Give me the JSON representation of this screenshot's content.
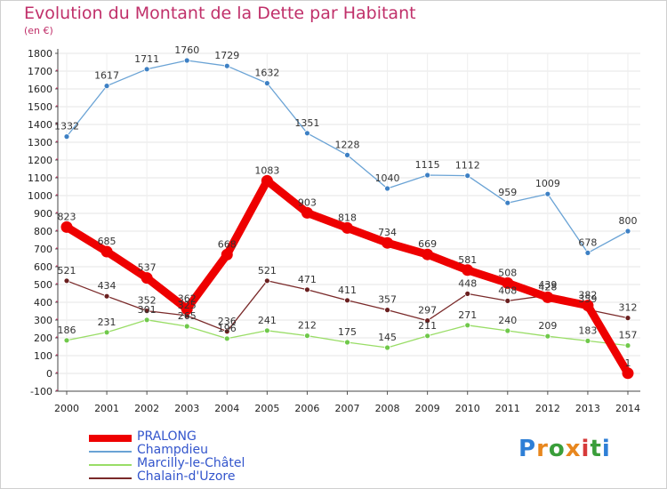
{
  "header": {
    "title": "Evolution du Montant de la Dette par Habitant",
    "unit": "(en €)"
  },
  "logo": {
    "text": "Proxiti",
    "colors": [
      "#2e7fd6",
      "#e8871e",
      "#3a9e3a",
      "#e8871e",
      "#d63a3a",
      "#3a9e3a",
      "#2e7fd6"
    ]
  },
  "chart_data": {
    "type": "line",
    "title": "Evolution du Montant de la Dette par Habitant",
    "ylabel": "(en €)",
    "xlabel": "",
    "x": [
      "2000",
      "2001",
      "2002",
      "2003",
      "2004",
      "2005",
      "2006",
      "2007",
      "2008",
      "2009",
      "2010",
      "2011",
      "2012",
      "2013",
      "2014"
    ],
    "ylim": [
      -100,
      1800
    ],
    "yticks": [
      "-100",
      "0",
      "100",
      "200",
      "300",
      "400",
      "500",
      "600",
      "700",
      "800",
      "900",
      "1000",
      "1100",
      "1200",
      "1300",
      "1400",
      "1500",
      "1600",
      "1700",
      "1800"
    ],
    "legend_position": "bottom-left",
    "series": [
      {
        "name": "PRALONG",
        "color": "#ee0000",
        "style": "thick",
        "values": [
          823,
          685,
          537,
          362,
          668,
          1083,
          903,
          818,
          734,
          669,
          581,
          508,
          428,
          382,
          1
        ],
        "labels": [
          "823",
          "685",
          "537",
          "362",
          "668",
          "1083",
          "903",
          "818",
          "734",
          "669",
          "581",
          "508",
          "428",
          "382",
          "1"
        ]
      },
      {
        "name": "Champdieu",
        "color": "#6aa3d5",
        "marker": "#3d80c4",
        "values": [
          1332,
          1617,
          1711,
          1760,
          1729,
          1632,
          1351,
          1228,
          1040,
          1115,
          1112,
          959,
          1009,
          678,
          800
        ],
        "labels": [
          "1332",
          "1617",
          "1711",
          "1760",
          "1729",
          "1632",
          "1351",
          "1228",
          "1040",
          "1115",
          "1112",
          "959",
          "1009",
          "678",
          "800"
        ]
      },
      {
        "name": "Marcilly-le-Châtel",
        "color": "#99dd66",
        "marker": "#6fc84a",
        "values": [
          186,
          231,
          301,
          265,
          196,
          241,
          212,
          175,
          145,
          211,
          271,
          240,
          209,
          183,
          157
        ],
        "labels": [
          "186",
          "231",
          "301",
          "265",
          "196",
          "241",
          "212",
          "175",
          "145",
          "211",
          "271",
          "240",
          "209",
          "183",
          "157"
        ]
      },
      {
        "name": "Chalain-d'Uzore",
        "color": "#7a2a2a",
        "marker": "#6a1f1f",
        "values": [
          521,
          434,
          352,
          325,
          236,
          521,
          471,
          411,
          357,
          297,
          448,
          408,
          439,
          359,
          312
        ],
        "labels": [
          "521",
          "434",
          "352",
          "325",
          "236",
          "521",
          "471",
          "411",
          "357",
          "297",
          "448",
          "408",
          "439",
          "359",
          "312"
        ]
      }
    ]
  }
}
